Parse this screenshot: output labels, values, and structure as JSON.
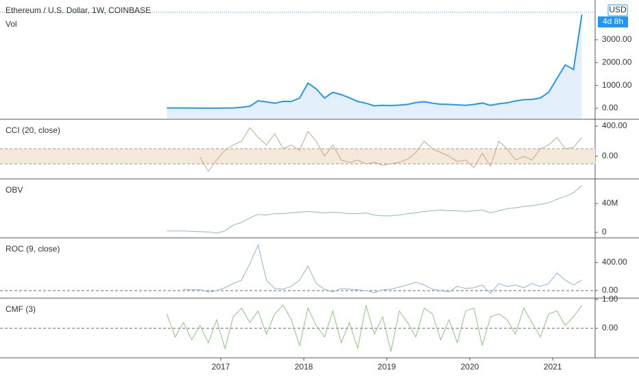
{
  "chart_data": [
    {
      "type": "area",
      "title": "Ethereum / U.S. Dollar, 1W, COINBASE",
      "subtitle": "Vol",
      "currency": "USD",
      "countdown": "4d 8h",
      "color": "#2196f3",
      "fill": "#e3f0fc",
      "grid": false,
      "x": [
        2016.35,
        2016.45,
        2016.55,
        2016.65,
        2016.75,
        2016.85,
        2016.95,
        2017.05,
        2017.15,
        2017.25,
        2017.35,
        2017.45,
        2017.55,
        2017.65,
        2017.75,
        2017.85,
        2017.95,
        2018.05,
        2018.15,
        2018.25,
        2018.35,
        2018.45,
        2018.55,
        2018.65,
        2018.75,
        2018.85,
        2018.95,
        2019.05,
        2019.15,
        2019.25,
        2019.35,
        2019.45,
        2019.55,
        2019.65,
        2019.75,
        2019.85,
        2019.95,
        2020.05,
        2020.15,
        2020.25,
        2020.35,
        2020.45,
        2020.55,
        2020.65,
        2020.75,
        2020.85,
        2020.95,
        2021.05,
        2021.15,
        2021.25,
        2021.35
      ],
      "values": [
        12,
        14,
        12,
        10,
        9,
        8,
        8,
        11,
        15,
        45,
        90,
        330,
        280,
        220,
        300,
        300,
        450,
        1100,
        850,
        450,
        700,
        600,
        460,
        300,
        220,
        110,
        130,
        120,
        140,
        170,
        250,
        290,
        220,
        180,
        170,
        150,
        130,
        170,
        230,
        130,
        200,
        240,
        320,
        380,
        390,
        450,
        700,
        1300,
        1900,
        1700,
        4100
      ],
      "xlim": [
        2014.34,
        2021.51
      ],
      "ylim": [
        -450,
        4740
      ],
      "yticks": [
        {
          "value": 0,
          "label": "0.00"
        },
        {
          "value": 1000,
          "label": "1000.00"
        },
        {
          "value": 2000,
          "label": "2000.00"
        },
        {
          "value": 3000,
          "label": "3000.00"
        }
      ]
    },
    {
      "type": "line",
      "title": "CCI (20, close)",
      "color": "#c8a47e",
      "band": [
        -100,
        100
      ],
      "band_color": "#f5e9dc",
      "grid": false,
      "x": [
        2016.35,
        2016.45,
        2016.55,
        2016.65,
        2016.75,
        2016.85,
        2016.95,
        2017.05,
        2017.15,
        2017.25,
        2017.35,
        2017.45,
        2017.55,
        2017.65,
        2017.75,
        2017.85,
        2017.95,
        2018.05,
        2018.15,
        2018.25,
        2018.35,
        2018.45,
        2018.55,
        2018.65,
        2018.75,
        2018.85,
        2018.95,
        2019.05,
        2019.15,
        2019.25,
        2019.35,
        2019.45,
        2019.55,
        2019.65,
        2019.75,
        2019.85,
        2019.95,
        2020.05,
        2020.15,
        2020.25,
        2020.35,
        2020.45,
        2020.55,
        2020.65,
        2020.75,
        2020.85,
        2020.95,
        2021.05,
        2021.15,
        2021.25,
        2021.35
      ],
      "values": [
        null,
        null,
        null,
        null,
        -10,
        -200,
        -50,
        80,
        150,
        200,
        380,
        250,
        150,
        300,
        100,
        150,
        80,
        330,
        200,
        0,
        150,
        -50,
        -80,
        -50,
        -100,
        -80,
        -120,
        -100,
        -80,
        -40,
        50,
        200,
        100,
        50,
        0,
        -70,
        -50,
        -150,
        40,
        -130,
        200,
        100,
        -50,
        0,
        -50,
        100,
        150,
        250,
        100,
        120,
        250
      ],
      "xlim": [
        2014.34,
        2021.51
      ],
      "ylim": [
        -291,
        482
      ],
      "yticks": [
        {
          "value": 0,
          "label": "0.00"
        },
        {
          "value": 400,
          "label": "400.00"
        }
      ]
    },
    {
      "type": "line",
      "title": "OBV",
      "color": "#8fb3d4",
      "grid": false,
      "x": [
        2016.35,
        2016.45,
        2016.55,
        2016.65,
        2016.75,
        2016.85,
        2016.95,
        2017.05,
        2017.15,
        2017.25,
        2017.35,
        2017.45,
        2017.55,
        2017.65,
        2017.75,
        2017.85,
        2017.95,
        2018.05,
        2018.15,
        2018.25,
        2018.35,
        2018.45,
        2018.55,
        2018.65,
        2018.75,
        2018.85,
        2018.95,
        2019.05,
        2019.15,
        2019.25,
        2019.35,
        2019.45,
        2019.55,
        2019.65,
        2019.75,
        2019.85,
        2019.95,
        2020.05,
        2020.15,
        2020.25,
        2020.35,
        2020.45,
        2020.55,
        2020.65,
        2020.75,
        2020.85,
        2020.95,
        2021.05,
        2021.15,
        2021.25,
        2021.35
      ],
      "values": [
        2000000,
        2000000,
        2000000,
        1500000,
        1000000,
        500000,
        -1000000,
        2000000,
        10000000,
        14000000,
        20000000,
        25000000,
        24000000,
        26000000,
        26000000,
        27000000,
        28000000,
        29000000,
        28000000,
        27000000,
        28000000,
        27000000,
        26000000,
        26000000,
        27000000,
        24000000,
        23000000,
        23000000,
        24000000,
        26000000,
        27000000,
        29000000,
        30000000,
        31000000,
        30000000,
        30000000,
        29000000,
        30000000,
        31000000,
        27000000,
        30000000,
        33000000,
        34000000,
        36000000,
        37000000,
        39000000,
        41000000,
        46000000,
        50000000,
        55000000,
        65000000
      ],
      "xlim": [
        2014.34,
        2021.51
      ],
      "ylim": [
        -6700000,
        73300000
      ],
      "yticks": [
        0,
        {
          "value": 40000000,
          "label": "40M"
        }
      ]
    },
    {
      "type": "line",
      "title": "ROC (9, close)",
      "color": "#8fb3d4",
      "hline": 0,
      "grid": false,
      "x": [
        2016.35,
        2016.45,
        2016.55,
        2016.65,
        2016.75,
        2016.85,
        2016.95,
        2017.05,
        2017.15,
        2017.25,
        2017.35,
        2017.45,
        2017.55,
        2017.65,
        2017.75,
        2017.85,
        2017.95,
        2018.05,
        2018.15,
        2018.25,
        2018.35,
        2018.45,
        2018.55,
        2018.65,
        2018.75,
        2018.85,
        2018.95,
        2019.05,
        2019.15,
        2019.25,
        2019.35,
        2019.45,
        2019.55,
        2019.65,
        2019.75,
        2019.85,
        2019.95,
        2020.05,
        2020.15,
        2020.25,
        2020.35,
        2020.45,
        2020.55,
        2020.65,
        2020.75,
        2020.85,
        2020.95,
        2021.05,
        2021.15,
        2021.25,
        2021.35
      ],
      "values": [
        null,
        null,
        20,
        10,
        15,
        -20,
        0,
        40,
        100,
        150,
        380,
        650,
        150,
        30,
        20,
        60,
        150,
        350,
        100,
        20,
        -20,
        30,
        20,
        10,
        0,
        -30,
        10,
        20,
        50,
        80,
        120,
        80,
        20,
        0,
        -20,
        60,
        30,
        40,
        80,
        -40,
        100,
        60,
        80,
        40,
        100,
        60,
        100,
        250,
        150,
        80,
        150
      ],
      "xlim": [
        2014.34,
        2021.51
      ],
      "ylim": [
        -98,
        741
      ],
      "yticks": [
        {
          "value": 0,
          "label": "0.00"
        },
        {
          "value": 400,
          "label": "400.00"
        }
      ]
    },
    {
      "type": "line",
      "title": "CMF (3)",
      "color": "#8cc57d",
      "hline": 0,
      "grid": false,
      "x": [
        2016.35,
        2016.45,
        2016.55,
        2016.65,
        2016.75,
        2016.85,
        2016.95,
        2017.05,
        2017.15,
        2017.25,
        2017.35,
        2017.45,
        2017.55,
        2017.65,
        2017.75,
        2017.85,
        2017.95,
        2018.05,
        2018.15,
        2018.25,
        2018.35,
        2018.45,
        2018.55,
        2018.65,
        2018.75,
        2018.85,
        2018.95,
        2019.05,
        2019.15,
        2019.25,
        2019.35,
        2019.45,
        2019.55,
        2019.65,
        2019.75,
        2019.85,
        2019.95,
        2020.05,
        2020.15,
        2020.25,
        2020.35,
        2020.45,
        2020.55,
        2020.65,
        2020.75,
        2020.85,
        2020.95,
        2021.05,
        2021.15,
        2021.25,
        2021.35
      ],
      "values": [
        0.5,
        -0.3,
        0.2,
        -0.4,
        0.1,
        -0.5,
        0.3,
        -0.7,
        0.4,
        0.7,
        0.2,
        0.6,
        -0.2,
        0.5,
        0.8,
        0.3,
        -0.6,
        0.7,
        0.1,
        -0.3,
        0.6,
        -0.5,
        0.2,
        -0.7,
        0.8,
        -0.2,
        0.4,
        -0.8,
        0.6,
        0.2,
        -0.3,
        0.7,
        0.5,
        -0.4,
        0.3,
        -0.5,
        0.6,
        0.7,
        -0.6,
        0.4,
        0.5,
        0.3,
        -0.2,
        0.7,
        0.2,
        -0.3,
        0.5,
        0.6,
        0.1,
        0.4,
        0.8
      ],
      "xlim": [
        2014.34,
        2021.51
      ],
      "ylim": [
        -1.02,
        1.02
      ],
      "yticks": [
        {
          "value": 0,
          "label": "0.00"
        },
        {
          "value": 1,
          "label": "1.00"
        }
      ],
      "xticks": [
        2017,
        2018,
        2019,
        2020,
        2021
      ]
    }
  ]
}
